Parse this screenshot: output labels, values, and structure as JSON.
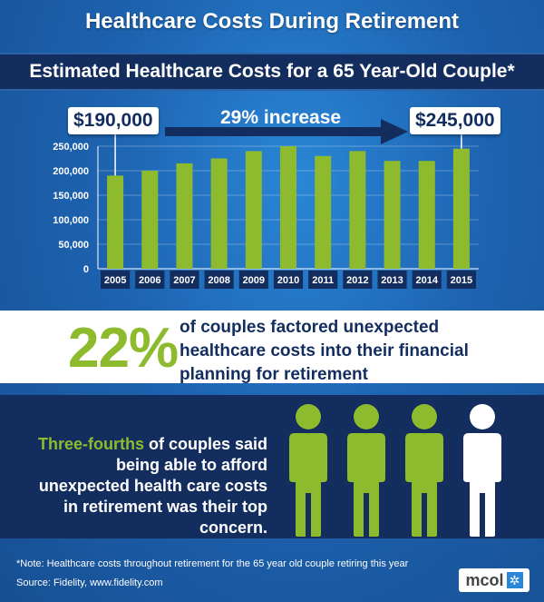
{
  "title": "Healthcare Costs During Retirement",
  "chart_data": {
    "type": "bar",
    "title": "Estimated Healthcare Costs for a 65 Year-Old Couple*",
    "categories": [
      "2005",
      "2006",
      "2007",
      "2008",
      "2009",
      "2010",
      "2011",
      "2012",
      "2013",
      "2014",
      "2015"
    ],
    "values": [
      190000,
      200000,
      215000,
      225000,
      240000,
      250000,
      230000,
      240000,
      220000,
      220000,
      245000
    ],
    "ylim": [
      0,
      250000
    ],
    "yticks": [
      "250,000",
      "200,000",
      "150,000",
      "100,000",
      "50,000",
      "0"
    ],
    "ytick_values": [
      250000,
      200000,
      150000,
      100000,
      50000,
      0
    ],
    "grid": true,
    "bar_color": "#8dbb2d",
    "annotations": {
      "start_label": "$190,000",
      "end_label": "$245,000",
      "change_label": "29% increase"
    }
  },
  "stat": {
    "percent": "22%",
    "text": "of couples factored unexpected healthcare costs into their financial planning for retirement"
  },
  "concern": {
    "highlight": "Three-fourths",
    "text": " of couples said being able to afford unexpected health care costs in retirement was their top concern."
  },
  "people": {
    "total": 4,
    "highlighted": 3,
    "highlight_color": "#8dbb2d",
    "other_color": "#ffffff",
    "icon": "person-icon"
  },
  "footer": {
    "note": "*Note:  Healthcare costs throughout retirement for the 65 year old couple retiring this year",
    "source": "Source:  Fidelity, www.fidelity.com",
    "logo": "mcol"
  },
  "colors": {
    "accent_green": "#8dbb2d",
    "navy": "#132e5e",
    "background_blue": "#1d63b0"
  }
}
